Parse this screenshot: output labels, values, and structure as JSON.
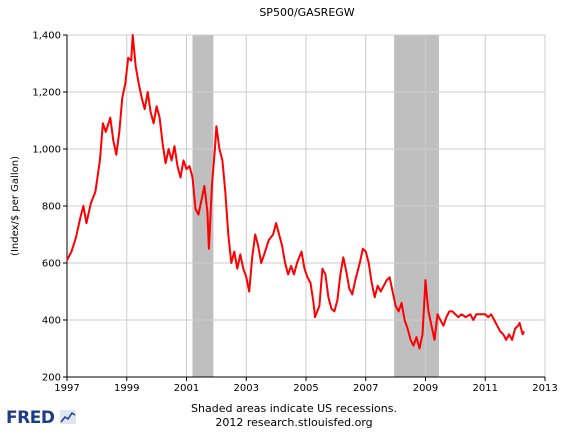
{
  "chart_data": {
    "type": "line",
    "title": "SP500/GASREGW",
    "ylabel": "(Index/$ per Gallon)",
    "xlabel": "",
    "xlim": [
      1997.0,
      2013.0
    ],
    "ylim": [
      200,
      1400
    ],
    "x_ticks": [
      1997,
      1999,
      2001,
      2003,
      2005,
      2007,
      2009,
      2011,
      2013
    ],
    "y_ticks": [
      200,
      400,
      600,
      800,
      1000,
      1200,
      1400
    ],
    "y_tick_labels": [
      "200",
      "400",
      "600",
      "800",
      "1,000",
      "1,200",
      "1,400"
    ],
    "grid": true,
    "legend": "none",
    "recessions": [
      [
        2001.2,
        2001.9
      ],
      [
        2007.95,
        2009.45
      ]
    ],
    "series": [
      {
        "color": "#ff0000",
        "points": [
          [
            1997.0,
            610
          ],
          [
            1997.15,
            640
          ],
          [
            1997.3,
            690
          ],
          [
            1997.45,
            760
          ],
          [
            1997.55,
            800
          ],
          [
            1997.65,
            740
          ],
          [
            1997.8,
            810
          ],
          [
            1997.95,
            850
          ],
          [
            1998.1,
            960
          ],
          [
            1998.2,
            1090
          ],
          [
            1998.3,
            1060
          ],
          [
            1998.45,
            1110
          ],
          [
            1998.55,
            1030
          ],
          [
            1998.65,
            980
          ],
          [
            1998.75,
            1060
          ],
          [
            1998.85,
            1180
          ],
          [
            1998.95,
            1230
          ],
          [
            1999.05,
            1320
          ],
          [
            1999.15,
            1310
          ],
          [
            1999.2,
            1400
          ],
          [
            1999.3,
            1290
          ],
          [
            1999.4,
            1230
          ],
          [
            1999.5,
            1180
          ],
          [
            1999.6,
            1140
          ],
          [
            1999.7,
            1200
          ],
          [
            1999.8,
            1130
          ],
          [
            1999.9,
            1090
          ],
          [
            2000.0,
            1150
          ],
          [
            2000.1,
            1110
          ],
          [
            2000.2,
            1020
          ],
          [
            2000.3,
            950
          ],
          [
            2000.4,
            1000
          ],
          [
            2000.5,
            960
          ],
          [
            2000.6,
            1010
          ],
          [
            2000.7,
            940
          ],
          [
            2000.8,
            900
          ],
          [
            2000.9,
            960
          ],
          [
            2001.0,
            930
          ],
          [
            2001.1,
            940
          ],
          [
            2001.2,
            900
          ],
          [
            2001.3,
            790
          ],
          [
            2001.4,
            770
          ],
          [
            2001.5,
            820
          ],
          [
            2001.6,
            870
          ],
          [
            2001.7,
            780
          ],
          [
            2001.75,
            650
          ],
          [
            2001.85,
            870
          ],
          [
            2001.95,
            1000
          ],
          [
            2002.0,
            1080
          ],
          [
            2002.1,
            1000
          ],
          [
            2002.2,
            960
          ],
          [
            2002.3,
            850
          ],
          [
            2002.4,
            700
          ],
          [
            2002.5,
            600
          ],
          [
            2002.6,
            640
          ],
          [
            2002.7,
            580
          ],
          [
            2002.8,
            630
          ],
          [
            2002.9,
            580
          ],
          [
            2003.0,
            550
          ],
          [
            2003.1,
            500
          ],
          [
            2003.2,
            620
          ],
          [
            2003.3,
            700
          ],
          [
            2003.4,
            660
          ],
          [
            2003.5,
            600
          ],
          [
            2003.6,
            630
          ],
          [
            2003.75,
            680
          ],
          [
            2003.9,
            700
          ],
          [
            2004.0,
            740
          ],
          [
            2004.1,
            700
          ],
          [
            2004.2,
            660
          ],
          [
            2004.3,
            600
          ],
          [
            2004.4,
            560
          ],
          [
            2004.5,
            590
          ],
          [
            2004.6,
            560
          ],
          [
            2004.7,
            600
          ],
          [
            2004.85,
            640
          ],
          [
            2004.95,
            580
          ],
          [
            2005.05,
            550
          ],
          [
            2005.15,
            530
          ],
          [
            2005.25,
            460
          ],
          [
            2005.3,
            410
          ],
          [
            2005.45,
            450
          ],
          [
            2005.55,
            580
          ],
          [
            2005.65,
            560
          ],
          [
            2005.75,
            480
          ],
          [
            2005.85,
            440
          ],
          [
            2005.95,
            430
          ],
          [
            2006.05,
            470
          ],
          [
            2006.15,
            560
          ],
          [
            2006.25,
            620
          ],
          [
            2006.35,
            570
          ],
          [
            2006.45,
            510
          ],
          [
            2006.55,
            490
          ],
          [
            2006.65,
            540
          ],
          [
            2006.8,
            600
          ],
          [
            2006.9,
            650
          ],
          [
            2007.0,
            640
          ],
          [
            2007.1,
            600
          ],
          [
            2007.2,
            530
          ],
          [
            2007.3,
            480
          ],
          [
            2007.4,
            520
          ],
          [
            2007.5,
            500
          ],
          [
            2007.6,
            520
          ],
          [
            2007.7,
            540
          ],
          [
            2007.8,
            550
          ],
          [
            2007.9,
            500
          ],
          [
            2008.0,
            450
          ],
          [
            2008.1,
            430
          ],
          [
            2008.2,
            460
          ],
          [
            2008.3,
            400
          ],
          [
            2008.4,
            370
          ],
          [
            2008.5,
            330
          ],
          [
            2008.6,
            310
          ],
          [
            2008.7,
            340
          ],
          [
            2008.8,
            300
          ],
          [
            2008.9,
            350
          ],
          [
            2009.0,
            540
          ],
          [
            2009.05,
            480
          ],
          [
            2009.1,
            430
          ],
          [
            2009.2,
            380
          ],
          [
            2009.3,
            330
          ],
          [
            2009.4,
            420
          ],
          [
            2009.5,
            400
          ],
          [
            2009.6,
            380
          ],
          [
            2009.7,
            410
          ],
          [
            2009.8,
            430
          ],
          [
            2009.9,
            430
          ],
          [
            2010.0,
            420
          ],
          [
            2010.1,
            410
          ],
          [
            2010.2,
            420
          ],
          [
            2010.35,
            410
          ],
          [
            2010.5,
            420
          ],
          [
            2010.6,
            400
          ],
          [
            2010.7,
            420
          ],
          [
            2010.85,
            420
          ],
          [
            2011.0,
            420
          ],
          [
            2011.1,
            410
          ],
          [
            2011.2,
            420
          ],
          [
            2011.3,
            400
          ],
          [
            2011.4,
            380
          ],
          [
            2011.5,
            360
          ],
          [
            2011.6,
            350
          ],
          [
            2011.7,
            330
          ],
          [
            2011.8,
            350
          ],
          [
            2011.9,
            330
          ],
          [
            2012.0,
            370
          ],
          [
            2012.1,
            380
          ],
          [
            2012.15,
            390
          ],
          [
            2012.25,
            350
          ],
          [
            2012.3,
            360
          ]
        ]
      }
    ]
  },
  "footer": {
    "note": "Shaded areas indicate US recessions.",
    "source": "2012 research.stlouisfed.org"
  },
  "logo": {
    "text": "FRED",
    "brand_color": "#1c3c8c"
  },
  "colors": {
    "line": "#ff0000",
    "recession": "#bfbfbf",
    "grid": "#cccccc",
    "plot_bg": "#ffffff"
  }
}
